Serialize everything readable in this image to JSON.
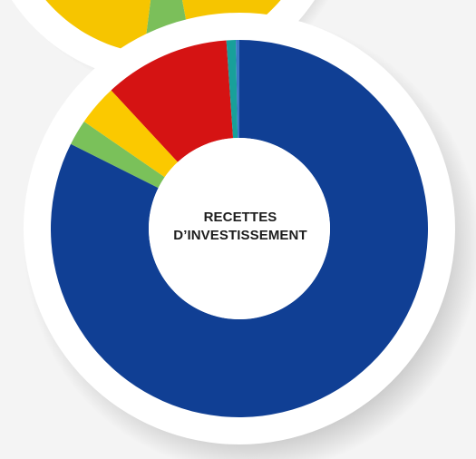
{
  "chart_data": [
    {
      "type": "pie",
      "variant": "donut",
      "title": "",
      "slices": [
        {
          "value": 5,
          "color": "#7bbf5a"
        },
        {
          "value": 95,
          "color": "#f6c500"
        }
      ]
    },
    {
      "type": "pie",
      "variant": "donut",
      "title": "",
      "center_label": [
        "RECETTES",
        "D’INVESTISSEMENT"
      ],
      "slices": [
        {
          "value": 82.4,
          "color": "#103f94"
        },
        {
          "value": 2.2,
          "color": "#7ac15a"
        },
        {
          "value": 3.5,
          "color": "#fbc900"
        },
        {
          "value": 10.8,
          "color": "#d51313"
        },
        {
          "value": 0.8,
          "color": "#18a09a"
        },
        {
          "value": 0.3,
          "color": "#3b78c6"
        }
      ]
    }
  ]
}
